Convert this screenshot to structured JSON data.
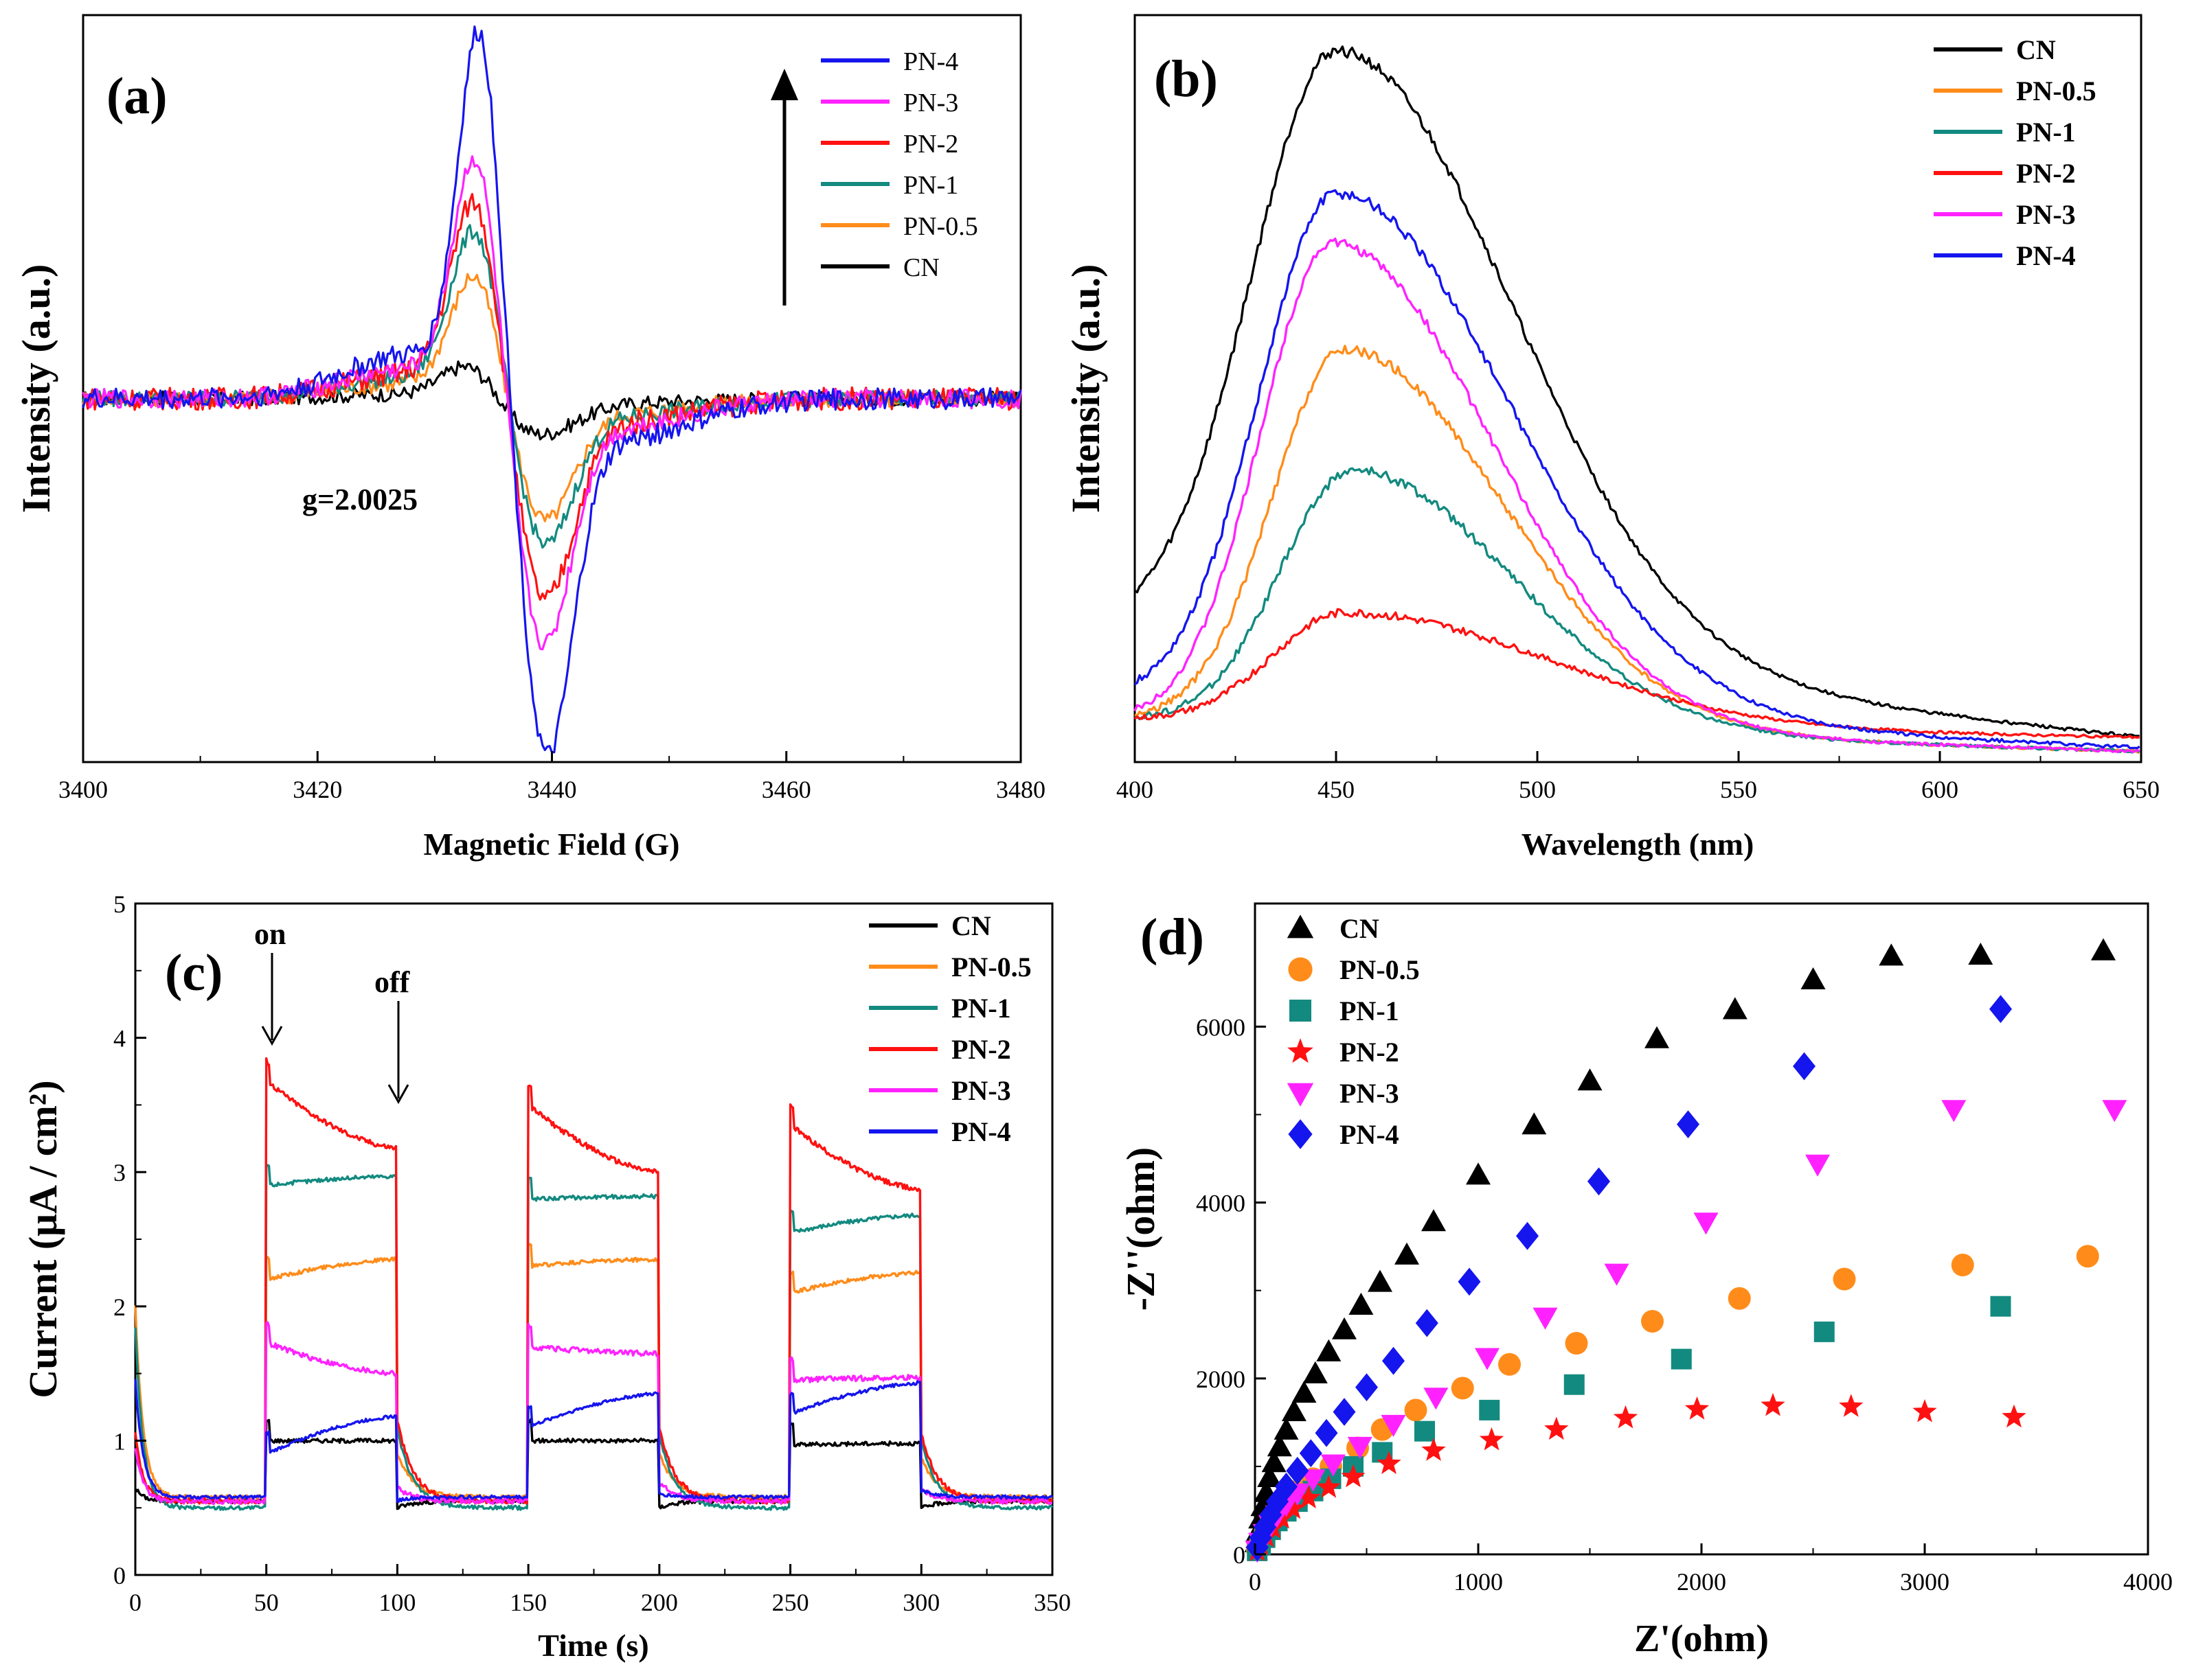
{
  "colors": {
    "CN": "#000000",
    "PN-0.5": "#ff8c1a",
    "PN-1": "#138a80",
    "PN-2": "#ff1111",
    "PN-3": "#ff22ff",
    "PN-4": "#1515ee"
  },
  "chart_data": [
    {
      "id": "a",
      "panel_label": "(a)",
      "type": "line",
      "xlabel": "Magnetic Field (G)",
      "ylabel": "Intensity (a.u.)",
      "xlim": [
        3400,
        3480
      ],
      "ylim": [
        -9,
        9.5
      ],
      "xticks": [
        3400,
        3420,
        3440,
        3460,
        3480
      ],
      "yticks": [],
      "annotation": "g=2.0025",
      "legend_order": [
        "PN-4",
        "PN-3",
        "PN-2",
        "PN-1",
        "PN-0.5",
        "CN"
      ],
      "series": [
        {
          "name": "CN",
          "center": 3435.5,
          "pos": 0.9,
          "neg": -0.85,
          "wp": 3.2,
          "wn": 4.5,
          "noise": 0.18
        },
        {
          "name": "PN-0.5",
          "center": 3436,
          "pos": 3.1,
          "neg": -2.9,
          "wp": 3.0,
          "wn": 3.6,
          "noise": 0.2
        },
        {
          "name": "PN-1",
          "center": 3436,
          "pos": 4.2,
          "neg": -3.5,
          "wp": 3.0,
          "wn": 3.6,
          "noise": 0.2
        },
        {
          "name": "PN-2",
          "center": 3436,
          "pos": 5.0,
          "neg": -4.8,
          "wp": 3.0,
          "wn": 3.6,
          "noise": 0.28
        },
        {
          "name": "PN-3",
          "center": 3436,
          "pos": 6.0,
          "neg": -5.8,
          "wp": 2.8,
          "wn": 3.4,
          "noise": 0.24
        },
        {
          "name": "PN-4",
          "center": 3436.3,
          "pos": 9.0,
          "neg": -8.4,
          "wp": 2.6,
          "wn": 3.2,
          "noise": 0.26
        }
      ]
    },
    {
      "id": "b",
      "panel_label": "(b)",
      "type": "line",
      "xlabel": "Wavelength (nm)",
      "ylabel": "Intensity (a.u.)",
      "xlim": [
        400,
        650
      ],
      "ylim": [
        0,
        10.5
      ],
      "xticks": [
        400,
        450,
        500,
        550,
        600,
        650
      ],
      "yticks": [],
      "legend_order": [
        "CN",
        "PN-0.5",
        "PN-1",
        "PN-2",
        "PN-3",
        "PN-4"
      ],
      "series": [
        {
          "name": "CN",
          "peak": 450,
          "amp": 10.0,
          "base0": 1.9,
          "end": 0.35,
          "wl": 30,
          "wr": 60,
          "noise": 0.08
        },
        {
          "name": "PN-0.5",
          "peak": 452,
          "amp": 5.8,
          "base0": 0.6,
          "end": 0.15,
          "wl": 25,
          "wr": 55,
          "noise": 0.07
        },
        {
          "name": "PN-1",
          "peak": 454,
          "amp": 4.1,
          "base0": 0.6,
          "end": 0.15,
          "wl": 25,
          "wr": 55,
          "noise": 0.07
        },
        {
          "name": "PN-2",
          "peak": 452,
          "amp": 2.1,
          "base0": 0.6,
          "end": 0.35,
          "wl": 25,
          "wr": 70,
          "noise": 0.06
        },
        {
          "name": "PN-3",
          "peak": 449,
          "amp": 7.3,
          "base0": 0.6,
          "end": 0.15,
          "wl": 25,
          "wr": 55,
          "noise": 0.07
        },
        {
          "name": "PN-4",
          "peak": 450,
          "amp": 8.0,
          "base0": 0.9,
          "end": 0.2,
          "wl": 27,
          "wr": 60,
          "noise": 0.08
        }
      ]
    },
    {
      "id": "c",
      "panel_label": "(c)",
      "type": "line",
      "xlabel": "Time (s)",
      "ylabel": "Current (μA / cm²)",
      "xlim": [
        0,
        350
      ],
      "ylim": [
        0,
        5
      ],
      "xticks": [
        0,
        50,
        100,
        150,
        200,
        250,
        300,
        350
      ],
      "yticks": [
        0,
        1,
        2,
        3,
        4,
        5
      ],
      "on_label": "on",
      "off_label": "off",
      "cycles": [
        [
          50,
          100
        ],
        [
          150,
          200
        ],
        [
          250,
          300
        ]
      ],
      "legend_order": [
        "CN",
        "PN-0.5",
        "PN-1",
        "PN-2",
        "PN-3",
        "PN-4"
      ],
      "series": [
        {
          "name": "CN",
          "dark_start": 0.65,
          "dark": 0.55,
          "on": [
            [
              1.0,
              1.0
            ],
            [
              1.0,
              1.0
            ],
            [
              0.97,
              0.98
            ]
          ],
          "noise": 0.015
        },
        {
          "name": "PN-0.5",
          "dark_start": 2.0,
          "dark": 0.58,
          "on": [
            [
              2.2,
              2.35
            ],
            [
              2.3,
              2.35
            ],
            [
              2.1,
              2.25
            ]
          ],
          "noise": 0.015
        },
        {
          "name": "PN-1",
          "dark_start": 1.85,
          "dark": 0.5,
          "on": [
            [
              2.9,
              2.97
            ],
            [
              2.8,
              2.82
            ],
            [
              2.55,
              2.68
            ]
          ],
          "noise": 0.015
        },
        {
          "name": "PN-2",
          "dark_start": 1.05,
          "dark": 0.55,
          "on": [
            [
              3.68,
              3.18
            ],
            [
              3.5,
              3.0
            ],
            [
              3.35,
              2.87
            ]
          ],
          "noise": 0.02
        },
        {
          "name": "PN-3",
          "dark_start": 0.95,
          "dark": 0.55,
          "on": [
            [
              1.73,
              1.5
            ],
            [
              1.7,
              1.65
            ],
            [
              1.45,
              1.47
            ]
          ],
          "noise": 0.02
        },
        {
          "name": "PN-4",
          "dark_start": 1.45,
          "dark": 0.58,
          "on": [
            [
              0.9,
              1.18
            ],
            [
              1.1,
              1.35
            ],
            [
              1.2,
              1.43
            ]
          ],
          "noise": 0.012
        }
      ]
    },
    {
      "id": "d",
      "panel_label": "(d)",
      "type": "scatter",
      "xlabel": "Z'(ohm)",
      "ylabel": "-Z''(ohm)",
      "xlim": [
        0,
        4000
      ],
      "ylim": [
        0,
        7400
      ],
      "xticks": [
        0,
        1000,
        2000,
        3000,
        4000
      ],
      "yticks": [
        0,
        2000,
        4000,
        6000
      ],
      "legend_order": [
        "CN",
        "PN-0.5",
        "PN-1",
        "PN-2",
        "PN-3",
        "PN-4"
      ],
      "series": [
        {
          "name": "CN",
          "marker": "triangle-up",
          "points": [
            [
              8,
              130
            ],
            [
              15,
              260
            ],
            [
              25,
              400
            ],
            [
              35,
              540
            ],
            [
              50,
              700
            ],
            [
              65,
              870
            ],
            [
              85,
              1040
            ],
            [
              110,
              1220
            ],
            [
              140,
              1410
            ],
            [
              175,
              1620
            ],
            [
              220,
              1830
            ],
            [
              270,
              2050
            ],
            [
              330,
              2300
            ],
            [
              400,
              2550
            ],
            [
              475,
              2830
            ],
            [
              560,
              3090
            ],
            [
              680,
              3400
            ],
            [
              800,
              3780
            ],
            [
              1000,
              4310
            ],
            [
              1250,
              4880
            ],
            [
              1500,
              5380
            ],
            [
              1800,
              5860
            ],
            [
              2150,
              6190
            ],
            [
              2500,
              6530
            ],
            [
              2850,
              6800
            ],
            [
              3250,
              6810
            ],
            [
              3800,
              6860
            ]
          ]
        },
        {
          "name": "PN-0.5",
          "marker": "circle",
          "points": [
            [
              10,
              60
            ],
            [
              25,
              150
            ],
            [
              45,
              250
            ],
            [
              70,
              360
            ],
            [
              100,
              470
            ],
            [
              140,
              590
            ],
            [
              190,
              720
            ],
            [
              260,
              860
            ],
            [
              340,
              1000
            ],
            [
              460,
              1210
            ],
            [
              570,
              1420
            ],
            [
              720,
              1640
            ],
            [
              930,
              1890
            ],
            [
              1140,
              2160
            ],
            [
              1440,
              2400
            ],
            [
              1780,
              2650
            ],
            [
              2170,
              2910
            ],
            [
              2640,
              3130
            ],
            [
              3170,
              3290
            ],
            [
              3730,
              3390
            ]
          ]
        },
        {
          "name": "PN-1",
          "marker": "square",
          "points": [
            [
              10,
              40
            ],
            [
              25,
              110
            ],
            [
              45,
              190
            ],
            [
              70,
              280
            ],
            [
              100,
              380
            ],
            [
              140,
              490
            ],
            [
              190,
              600
            ],
            [
              260,
              720
            ],
            [
              340,
              860
            ],
            [
              440,
              1000
            ],
            [
              570,
              1160
            ],
            [
              760,
              1400
            ],
            [
              1050,
              1640
            ],
            [
              1430,
              1930
            ],
            [
              1910,
              2220
            ],
            [
              2550,
              2530
            ],
            [
              3340,
              2820
            ]
          ]
        },
        {
          "name": "PN-2",
          "marker": "star",
          "points": [
            [
              10,
              40
            ],
            [
              25,
              110
            ],
            [
              50,
              200
            ],
            [
              80,
              300
            ],
            [
              120,
              410
            ],
            [
              170,
              520
            ],
            [
              240,
              640
            ],
            [
              330,
              760
            ],
            [
              440,
              880
            ],
            [
              600,
              1030
            ],
            [
              800,
              1180
            ],
            [
              1060,
              1300
            ],
            [
              1350,
              1420
            ],
            [
              1660,
              1550
            ],
            [
              1980,
              1650
            ],
            [
              2320,
              1690
            ],
            [
              2670,
              1680
            ],
            [
              3000,
              1620
            ],
            [
              3400,
              1560
            ]
          ]
        },
        {
          "name": "PN-3",
          "marker": "triangle-down",
          "points": [
            [
              10,
              50
            ],
            [
              25,
              140
            ],
            [
              45,
              240
            ],
            [
              70,
              340
            ],
            [
              100,
              450
            ],
            [
              140,
              570
            ],
            [
              190,
              700
            ],
            [
              260,
              860
            ],
            [
              350,
              1030
            ],
            [
              470,
              1230
            ],
            [
              620,
              1480
            ],
            [
              810,
              1790
            ],
            [
              1040,
              2240
            ],
            [
              1300,
              2700
            ],
            [
              1620,
              3200
            ],
            [
              2020,
              3780
            ],
            [
              2520,
              4440
            ],
            [
              3130,
              5060
            ],
            [
              3850,
              5060
            ]
          ]
        },
        {
          "name": "PN-4",
          "marker": "diamond",
          "points": [
            [
              10,
              80
            ],
            [
              25,
              190
            ],
            [
              45,
              310
            ],
            [
              70,
              450
            ],
            [
              100,
              600
            ],
            [
              140,
              770
            ],
            [
              190,
              950
            ],
            [
              250,
              1150
            ],
            [
              320,
              1380
            ],
            [
              400,
              1620
            ],
            [
              500,
              1900
            ],
            [
              620,
              2200
            ],
            [
              770,
              2630
            ],
            [
              960,
              3100
            ],
            [
              1220,
              3620
            ],
            [
              1540,
              4240
            ],
            [
              1940,
              4890
            ],
            [
              2460,
              5550
            ],
            [
              3340,
              6200
            ]
          ]
        }
      ]
    }
  ]
}
